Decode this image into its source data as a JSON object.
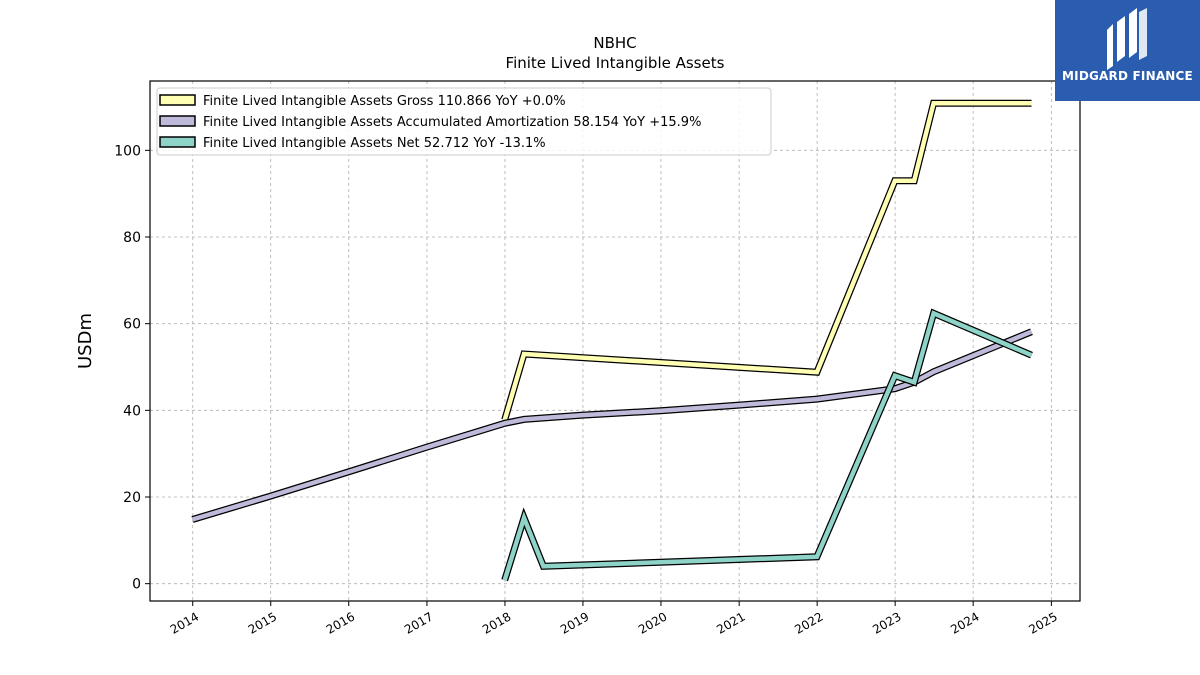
{
  "chart_data": {
    "type": "line",
    "title": "NBHC",
    "subtitle": "Finite Lived Intangible Assets",
    "ylabel": "USDm",
    "xlabel": "",
    "xlim": [
      "2013-06-15",
      "2025-05-15"
    ],
    "ylim": [
      -4,
      116
    ],
    "x_ticks": [
      "2014",
      "2015",
      "2016",
      "2017",
      "2018",
      "2019",
      "2020",
      "2021",
      "2022",
      "2023",
      "2024",
      "2025"
    ],
    "y_ticks": [
      0,
      20,
      40,
      60,
      80,
      100
    ],
    "grid": true,
    "legend_position": "top-left",
    "series": [
      {
        "name": "Finite Lived Intangible Assets Gross  110.866 YoY +0.0%",
        "color": "#ffffb3",
        "points": [
          [
            "2017-12-31",
            37.8
          ],
          [
            "2018-03-31",
            53.0
          ],
          [
            "2021-12-31",
            48.8
          ],
          [
            "2022-12-31",
            93.0
          ],
          [
            "2023-03-31",
            93.0
          ],
          [
            "2023-06-30",
            110.866
          ],
          [
            "2024-09-30",
            110.866
          ]
        ]
      },
      {
        "name": "Finite Lived Intangible Assets Accumulated Amortization  58.154 YoY +15.9%",
        "color": "#bebada",
        "points": [
          [
            "2013-12-31",
            14.8
          ],
          [
            "2014-12-31",
            20.2
          ],
          [
            "2015-12-31",
            25.8
          ],
          [
            "2016-12-31",
            31.5
          ],
          [
            "2017-12-31",
            37.0
          ],
          [
            "2018-03-31",
            37.9
          ],
          [
            "2018-12-31",
            38.9
          ],
          [
            "2019-12-31",
            39.9
          ],
          [
            "2020-12-31",
            41.2
          ],
          [
            "2021-12-31",
            42.6
          ],
          [
            "2022-12-31",
            45.0
          ],
          [
            "2023-03-31",
            46.5
          ],
          [
            "2023-06-30",
            48.9
          ],
          [
            "2024-09-30",
            58.154
          ]
        ]
      },
      {
        "name": "Finite Lived Intangible Assets Net  52.712 YoY -13.1%",
        "color": "#8dd3c7",
        "points": [
          [
            "2017-12-31",
            0.8
          ],
          [
            "2018-03-31",
            15.2
          ],
          [
            "2018-06-30",
            4.0
          ],
          [
            "2021-12-31",
            6.2
          ],
          [
            "2022-12-31",
            48.0
          ],
          [
            "2023-03-31",
            46.5
          ],
          [
            "2023-06-30",
            62.4
          ],
          [
            "2024-09-30",
            52.712
          ]
        ]
      }
    ]
  },
  "logo": {
    "text": "MIDGARD FINANCE"
  }
}
